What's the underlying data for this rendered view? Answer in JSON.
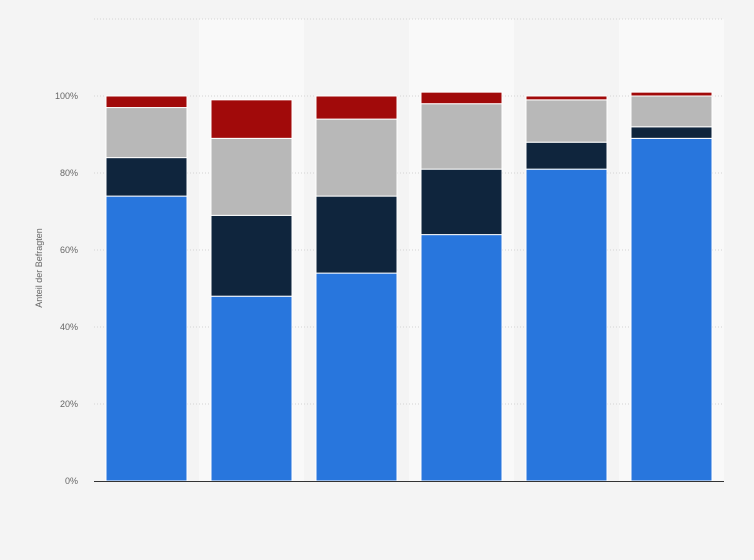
{
  "chart_data": {
    "type": "bar",
    "stacked": true,
    "title": "",
    "xlabel": "",
    "ylabel": "Anteil der Befragten",
    "ylim": [
      0,
      120
    ],
    "yticks": [
      0,
      20,
      40,
      60,
      80,
      100
    ],
    "ytick_labels": [
      "0%",
      "20%",
      "40%",
      "60%",
      "80%",
      "100%"
    ],
    "grid": true,
    "legend": "none",
    "categories": [
      "",
      "",
      "",
      "",
      "",
      ""
    ],
    "series": [
      {
        "values": [
          74,
          48,
          54,
          64,
          81,
          89
        ]
      },
      {
        "values": [
          10,
          21,
          20,
          17,
          7,
          3
        ]
      },
      {
        "values": [
          13,
          20,
          20,
          17,
          11,
          8
        ]
      },
      {
        "values": [
          3,
          10,
          6,
          3,
          1,
          1
        ]
      }
    ],
    "colors": [
      "#2876dd",
      "#0f253d",
      "#b8b8b8",
      "#a10a0a"
    ]
  }
}
